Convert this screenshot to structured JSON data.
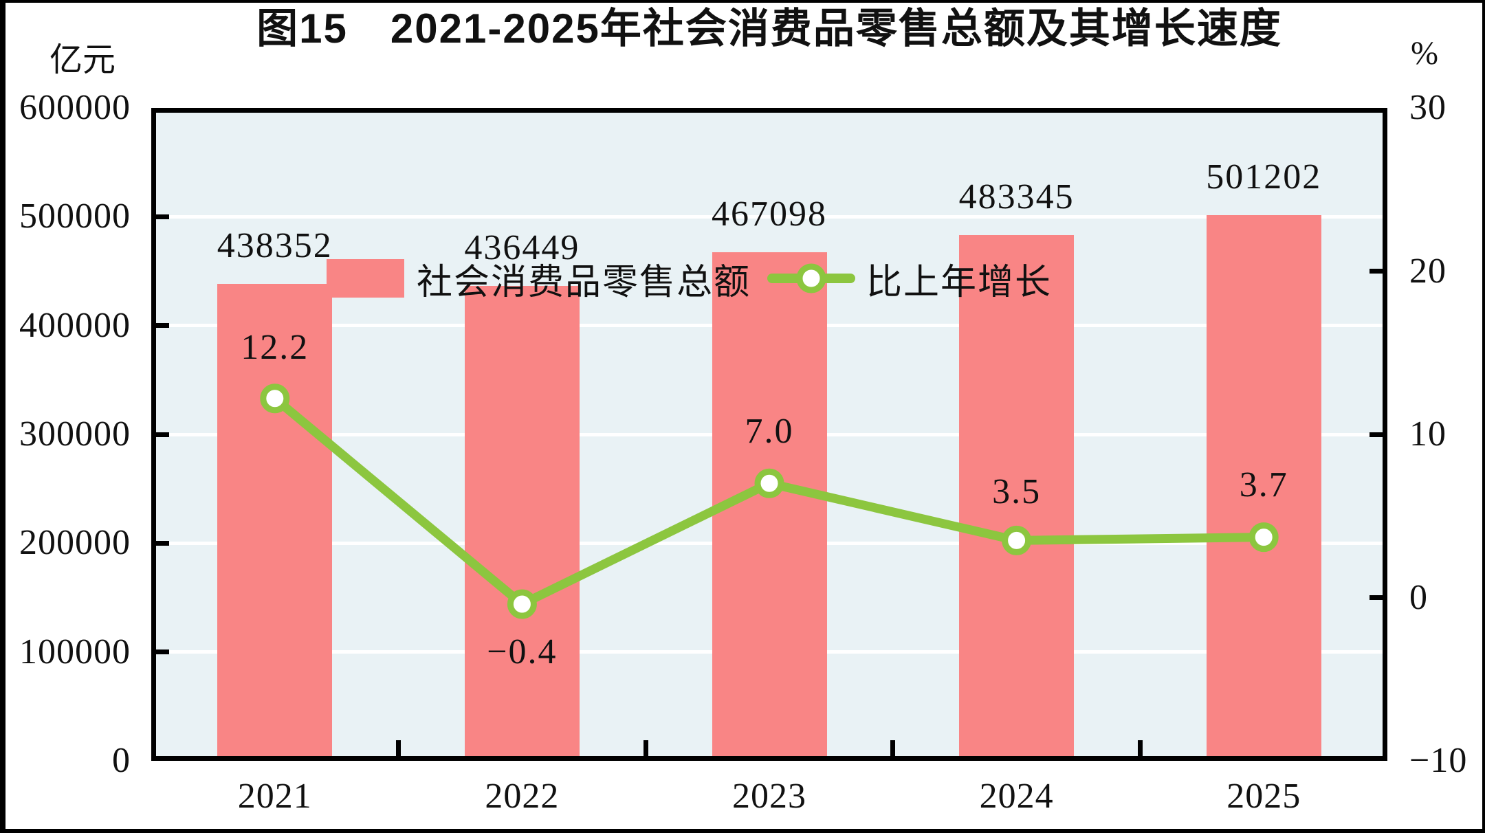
{
  "title": "图15　2021-2025年社会消费品零售总额及其增长速度",
  "left_axis": {
    "unit": "亿元",
    "min": 0,
    "max": 600000,
    "tick_labels": [
      "0",
      "100000",
      "200000",
      "300000",
      "400000",
      "500000",
      "600000"
    ],
    "tick_values": [
      0,
      100000,
      200000,
      300000,
      400000,
      500000,
      600000
    ]
  },
  "right_axis": {
    "unit": "%",
    "min": -10,
    "max": 30,
    "tick_labels": [
      "−10",
      "0",
      "10",
      "20",
      "30"
    ],
    "tick_values": [
      -10,
      0,
      10,
      20,
      30
    ]
  },
  "legend": {
    "bar_label": "社会消费品零售总额",
    "line_label": "比上年增长"
  },
  "colors": {
    "bar": "#F98585",
    "line": "#8CC63F",
    "plot_bg": "#E9F2F5",
    "grid": "#FFFFFF",
    "text": "#111111",
    "spine": "#000000"
  },
  "chart_data": {
    "type": "bar",
    "title": "图15　2021-2025年社会消费品零售总额及其增长速度",
    "categories": [
      "2021",
      "2022",
      "2023",
      "2024",
      "2025"
    ],
    "series": [
      {
        "name": "社会消费品零售总额",
        "type": "bar",
        "axis": "left",
        "unit": "亿元",
        "values": [
          438352,
          436449,
          467098,
          483345,
          501202
        ],
        "labels": [
          "438352",
          "436449",
          "467098",
          "483345",
          "501202"
        ]
      },
      {
        "name": "比上年增长",
        "type": "line",
        "axis": "right",
        "unit": "%",
        "values": [
          12.2,
          -0.4,
          7.0,
          3.5,
          3.7
        ],
        "labels": [
          "12.2",
          "−0.4",
          "7.0",
          "3.5",
          "3.7"
        ]
      }
    ],
    "left_ylim": [
      0,
      600000
    ],
    "right_ylim": [
      -10,
      30
    ],
    "grid": true,
    "legend_position": "top-left-inside"
  }
}
